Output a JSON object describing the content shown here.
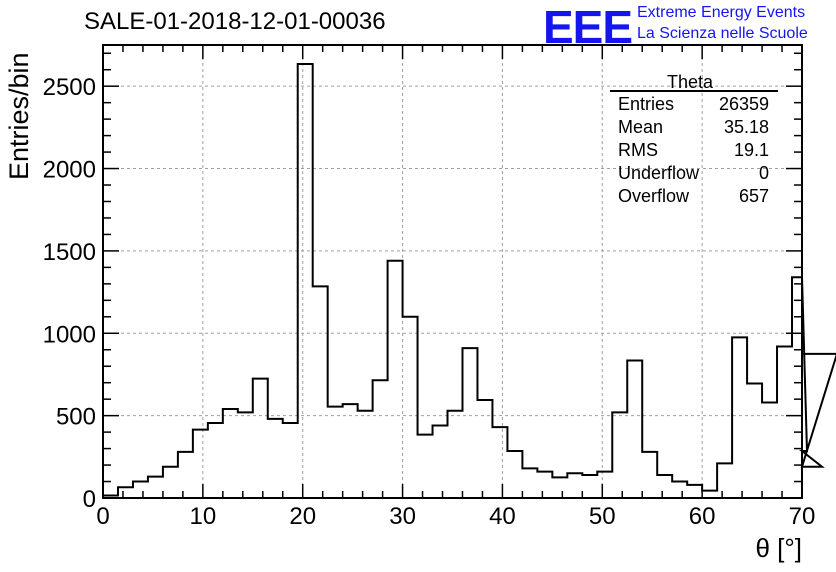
{
  "header": {
    "title": "SALE-01-2018-12-01-00036",
    "logo_text": "EEE",
    "logo_line1": "Extreme Energy Events",
    "logo_line2": "La Scienza nelle Scuole"
  },
  "stats_box": {
    "name": "Theta",
    "rows": [
      {
        "label": "Entries",
        "value": "26359"
      },
      {
        "label": "Mean",
        "value": "35.18"
      },
      {
        "label": "RMS",
        "value": "19.1"
      },
      {
        "label": "Underflow",
        "value": "0"
      },
      {
        "label": "Overflow",
        "value": "657"
      }
    ]
  },
  "chart_data": {
    "type": "bar",
    "style": "step-histogram",
    "xlabel": "θ [°]",
    "ylabel": "Entries/bin",
    "xlim": [
      0,
      70
    ],
    "ylim": [
      0,
      2750
    ],
    "grid": true,
    "bin_width": 1.5,
    "xticks": [
      0,
      10,
      20,
      30,
      40,
      50,
      60,
      70
    ],
    "yticks": [
      0,
      500,
      1000,
      1500,
      2000,
      2500
    ],
    "bin_edges_start": 0,
    "values": [
      15,
      65,
      100,
      130,
      190,
      280,
      415,
      455,
      540,
      520,
      725,
      480,
      455,
      2635,
      1285,
      555,
      570,
      530,
      715,
      1440,
      1100,
      385,
      440,
      530,
      910,
      595,
      430,
      285,
      180,
      160,
      125,
      150,
      140,
      160,
      520,
      835,
      280,
      140,
      100,
      80,
      45,
      210,
      975,
      695,
      580,
      920,
      1340,
      285,
      190,
      875
    ],
    "line_color": "#000000",
    "grid_color": "#a0a0a0"
  }
}
